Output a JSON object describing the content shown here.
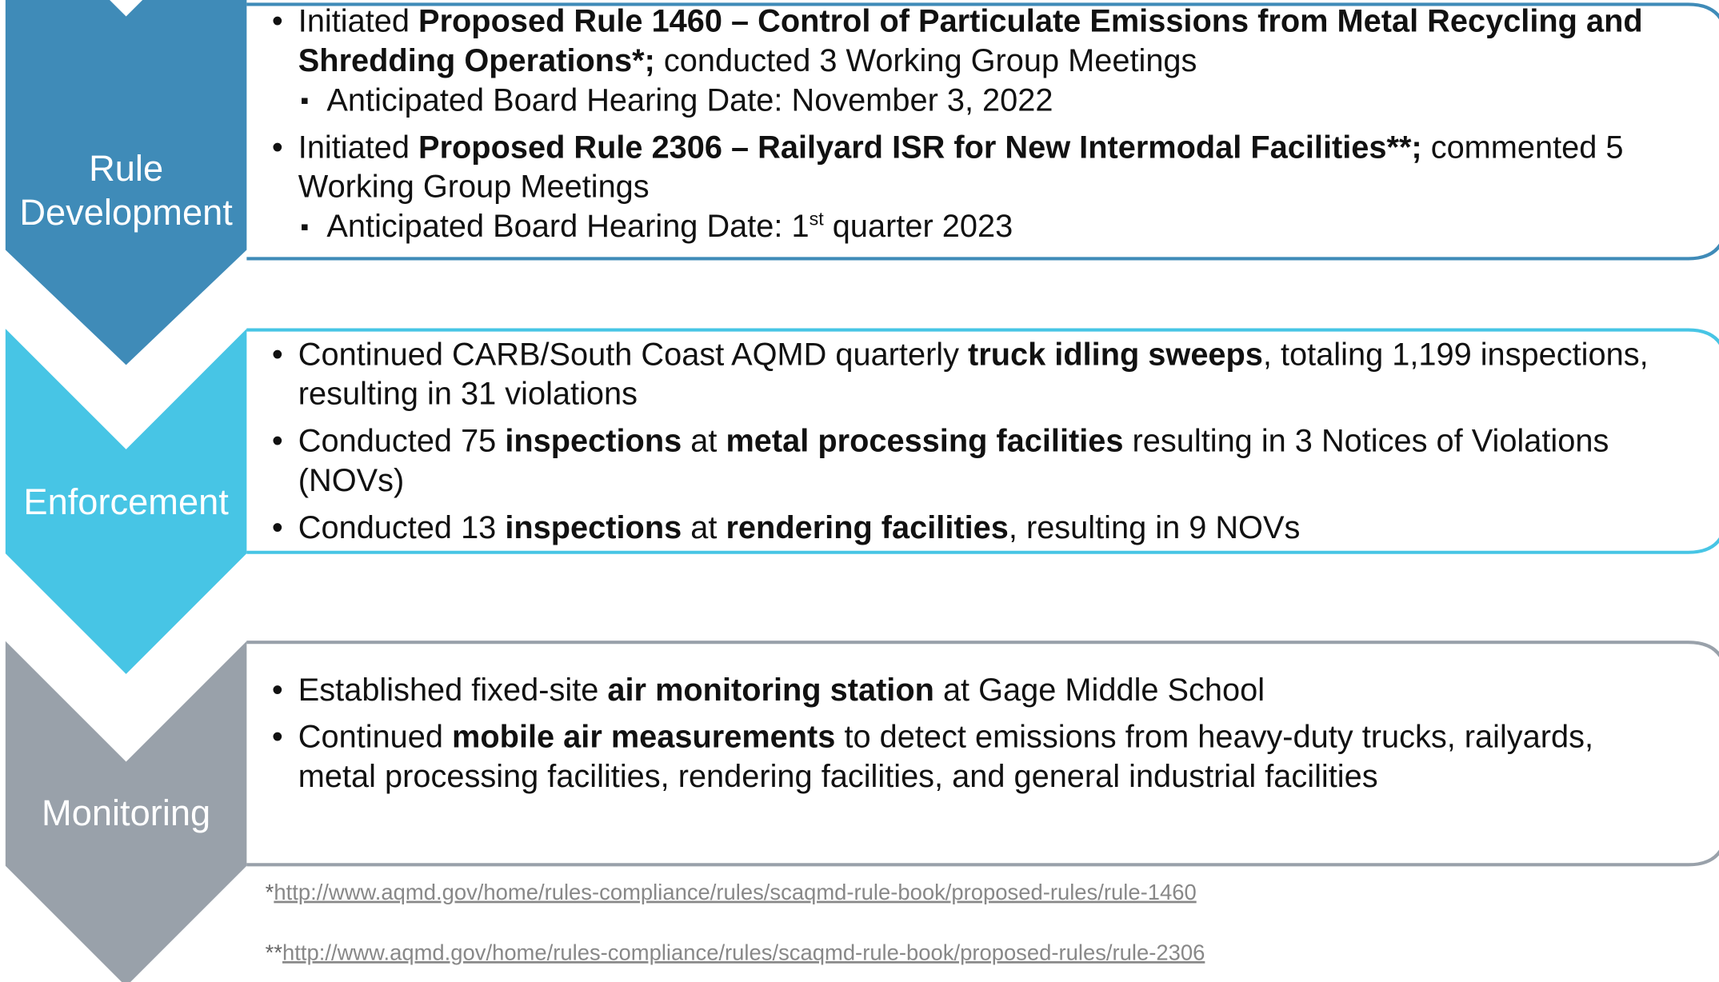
{
  "sections": [
    {
      "label": "Rule Development",
      "bullets": [
        {
          "runs": [
            {
              "text": "Initiated "
            },
            {
              "text": "Proposed Rule 1460 – Control of Particulate Emissions from Metal Recycling and Shredding Operations*;",
              "bold": true
            },
            {
              "text": " conducted 3 Working Group Meetings"
            }
          ],
          "sub": [
            {
              "runs": [
                {
                  "text": "Anticipated Board Hearing Date: November 3, 2022"
                }
              ]
            }
          ]
        },
        {
          "runs": [
            {
              "text": "Initiated "
            },
            {
              "text": "Proposed Rule 2306 – Railyard ISR for New Intermodal Facilities**;",
              "bold": true
            },
            {
              "text": " commented 5 Working Group Meetings"
            }
          ],
          "sub": [
            {
              "runs": [
                {
                  "text": "Anticipated Board Hearing Date: 1"
                },
                {
                  "text": "st",
                  "sup": true
                },
                {
                  "text": " quarter 2023"
                }
              ]
            }
          ]
        }
      ]
    },
    {
      "label": "Enforcement",
      "bullets": [
        {
          "runs": [
            {
              "text": "Continued CARB/South Coast AQMD quarterly "
            },
            {
              "text": "truck idling sweeps",
              "bold": true
            },
            {
              "text": ", totaling 1,199 inspections, resulting in 31 violations"
            }
          ]
        },
        {
          "runs": [
            {
              "text": "Conducted 75 "
            },
            {
              "text": "inspections",
              "bold": true
            },
            {
              "text": " at "
            },
            {
              "text": "metal processing facilities",
              "bold": true
            },
            {
              "text": " resulting in 3 Notices of Violations (NOVs)"
            }
          ]
        },
        {
          "runs": [
            {
              "text": "Conducted 13 "
            },
            {
              "text": "inspections",
              "bold": true
            },
            {
              "text": " at "
            },
            {
              "text": "rendering facilities",
              "bold": true
            },
            {
              "text": ", resulting in 9 NOVs"
            }
          ]
        }
      ]
    },
    {
      "label": "Monitoring",
      "bullets": [
        {
          "runs": [
            {
              "text": "Established fixed-site "
            },
            {
              "text": "air monitoring station",
              "bold": true
            },
            {
              "text": " at Gage Middle School"
            }
          ]
        },
        {
          "runs": [
            {
              "text": "Continued "
            },
            {
              "text": "mobile air measurements",
              "bold": true
            },
            {
              "text": " to detect emissions from heavy-duty trucks, railyards, metal processing facilities, rendering facilities, and general industrial facilities"
            }
          ]
        }
      ]
    }
  ],
  "footnotes": [
    {
      "mark": "*",
      "link": "http://www.aqmd.gov/home/rules-compliance/rules/scaqmd-rule-book/proposed-rules/rule-1460"
    },
    {
      "mark": "**",
      "link": "http://www.aqmd.gov/home/rules-compliance/rules/scaqmd-rule-book/proposed-rules/rule-2306"
    }
  ]
}
